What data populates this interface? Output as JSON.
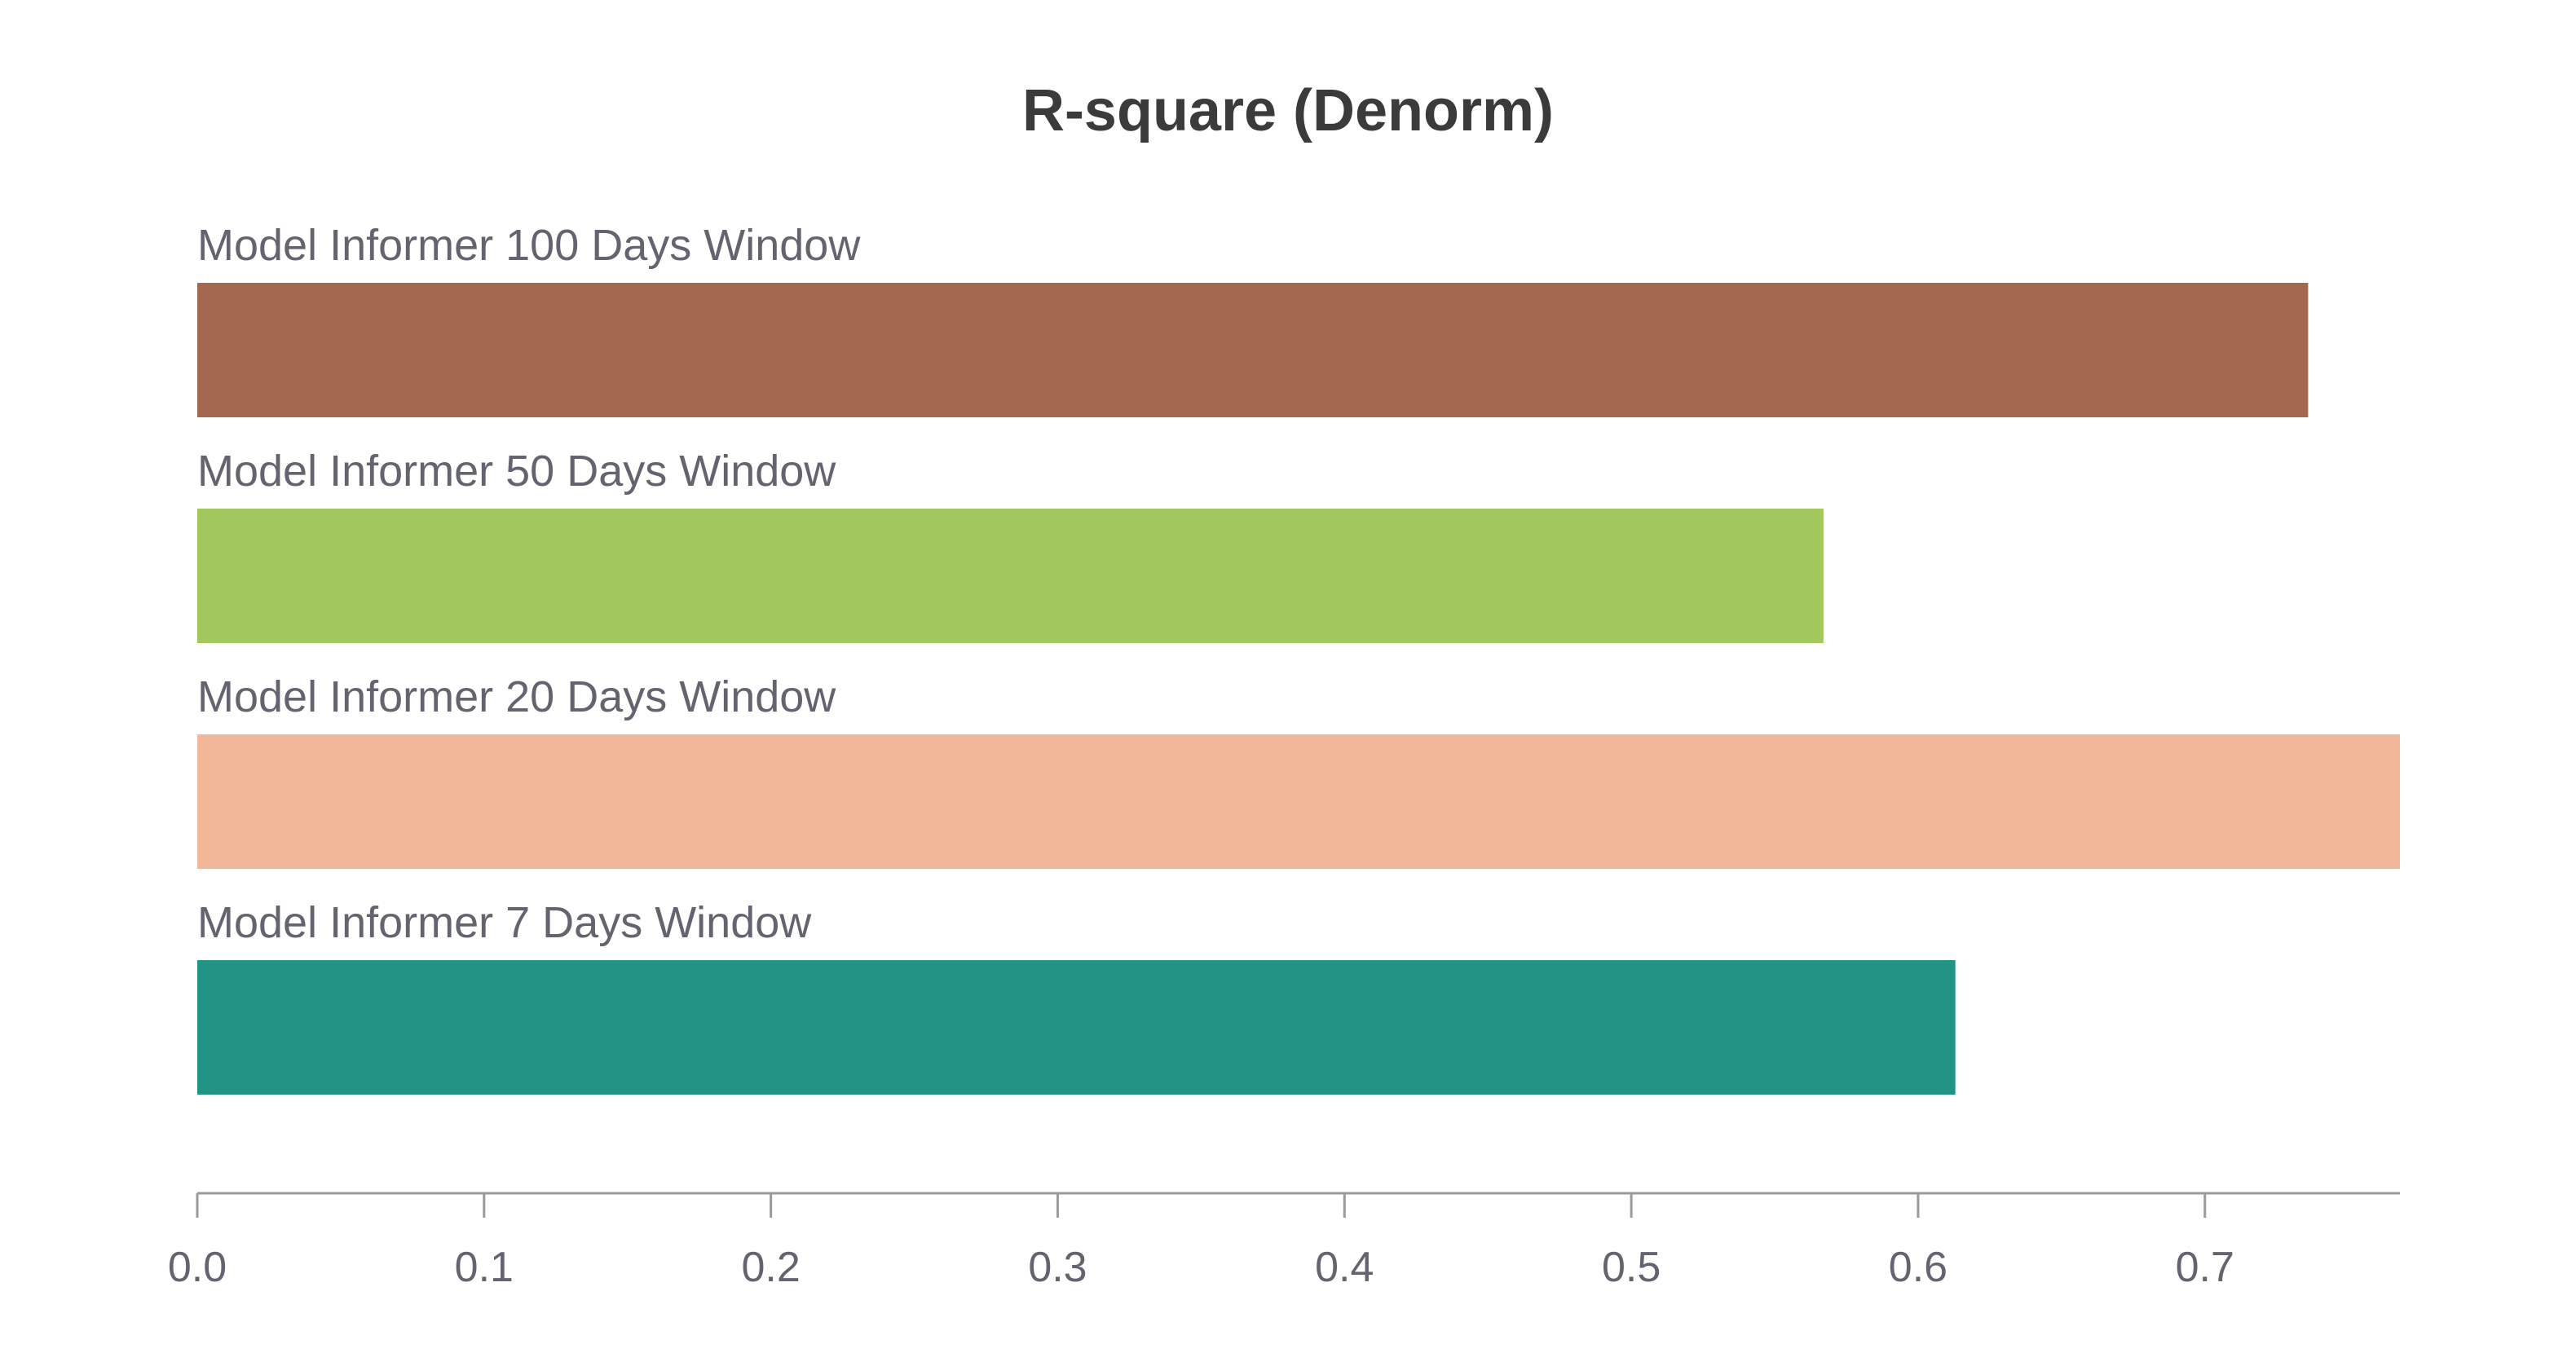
{
  "chart_data": {
    "type": "bar",
    "orientation": "horizontal",
    "title": "R-square (Denorm)",
    "xlabel": "",
    "ylabel": "",
    "categories": [
      "Model Informer 100 Days Window",
      "Model Informer 50 Days Window",
      "Model Informer 20 Days Window",
      "Model Informer 7 Days Window"
    ],
    "values": [
      0.736,
      0.567,
      0.768,
      0.613
    ],
    "colors": [
      "#a3684e",
      "#a2c75c",
      "#f1b798",
      "#219486"
    ],
    "xlim": [
      0,
      0.768
    ],
    "ticks": [
      0,
      0.1,
      0.2,
      0.3,
      0.4,
      0.5,
      0.6,
      0.7
    ],
    "tick_labels": [
      "0.0",
      "0.1",
      "0.2",
      "0.3",
      "0.4",
      "0.5",
      "0.6",
      "0.7"
    ],
    "grid": false,
    "legend": "none"
  }
}
